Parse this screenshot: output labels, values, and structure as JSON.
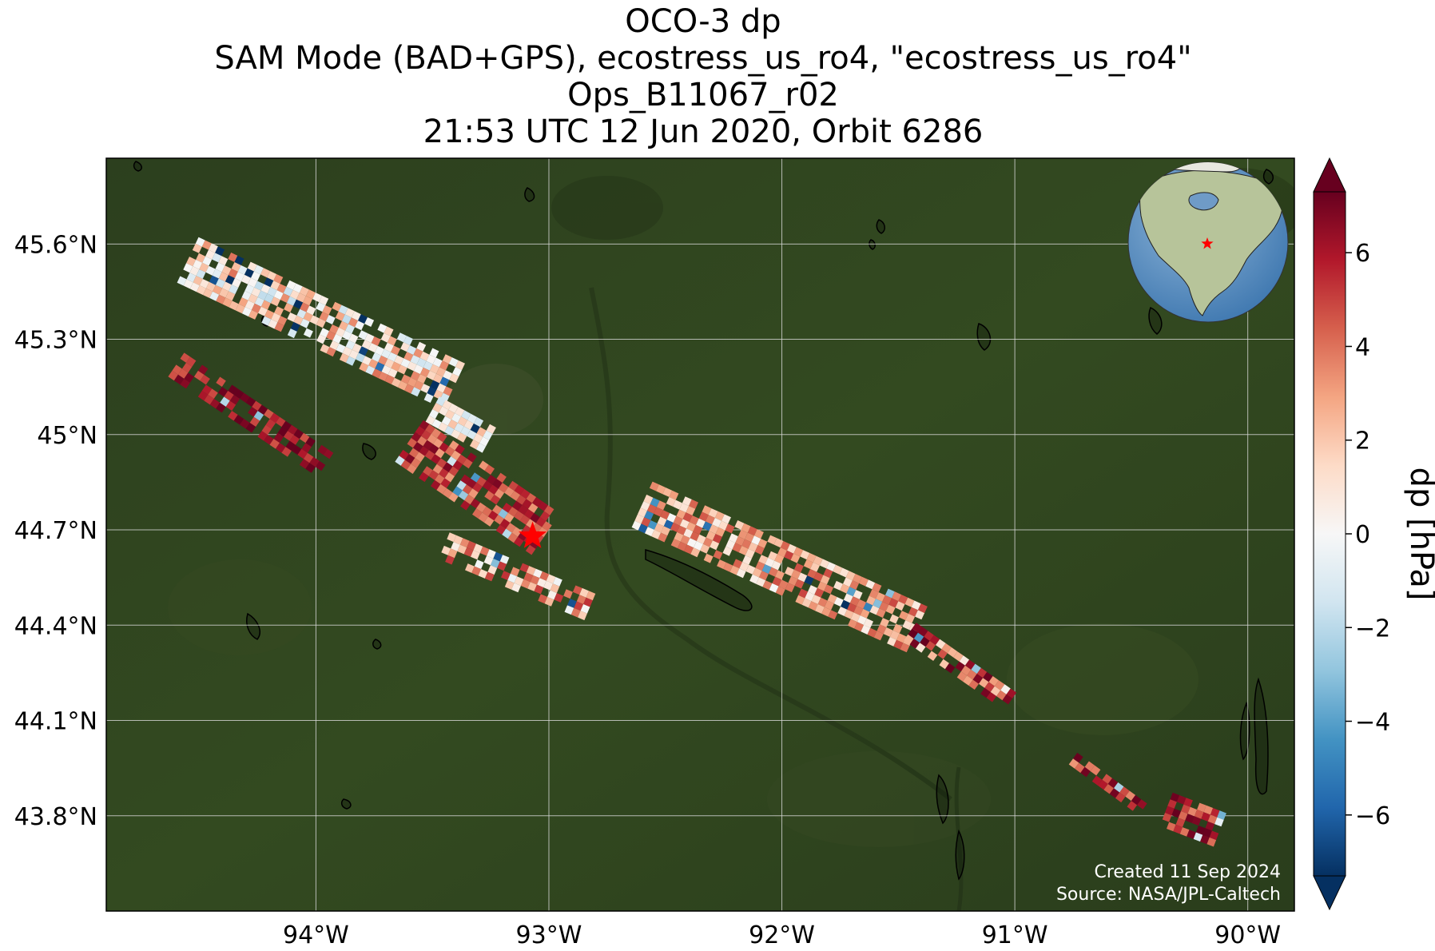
{
  "title": {
    "line1": "OCO-3 dp",
    "line2": "SAM Mode (BAD+GPS), ecostress_us_ro4, \"ecostress_us_ro4\"",
    "line3": "Ops_B11067_r02",
    "line4": "21:53 UTC 12 Jun 2020, Orbit 6286"
  },
  "credits": {
    "created": "Created 11 Sep 2024",
    "source": "Source: NASA/JPL-Caltech"
  },
  "colorbar": {
    "label": "dp [hPa]",
    "colormap": "RdBu_r",
    "range": [
      -7.3,
      7.3
    ],
    "extend": "both",
    "ticks": [
      -6,
      -4,
      -2,
      0,
      2,
      4,
      6
    ],
    "tick_labels": [
      "−6",
      "−4",
      "−2",
      "0",
      "2",
      "4",
      "6"
    ]
  },
  "axes": {
    "lon_range": [
      -94.9,
      -89.8
    ],
    "lat_range": [
      43.5,
      45.87
    ],
    "lon_ticks": [
      -94,
      -93,
      -92,
      -91,
      -90
    ],
    "lon_tick_labels": [
      "94°W",
      "93°W",
      "92°W",
      "91°W",
      "90°W"
    ],
    "lat_ticks": [
      45.6,
      45.3,
      45.0,
      44.7,
      44.4,
      44.1,
      43.8
    ],
    "lat_tick_labels": [
      "45.6°N",
      "45.3°N",
      "45°N",
      "44.7°N",
      "44.4°N",
      "44.1°N",
      "43.8°N"
    ],
    "grid": true
  },
  "map": {
    "basemap": "satellite imagery",
    "target_marker": {
      "lon": -93.07,
      "lat": 44.68,
      "symbol": "star",
      "color": "#ff0000"
    },
    "inset_globe": {
      "marker": "star",
      "center_lon": -93.0,
      "center_lat": 44.7
    }
  },
  "chart_data": {
    "type": "heatmap",
    "variable": "dp",
    "units": "hPa",
    "swaths": [
      {
        "name": "swath-1",
        "lon_start": -94.55,
        "lat_start": 45.55,
        "lon_end": -93.4,
        "lat_end": 45.15,
        "across_deg": 0.1,
        "mean_dp": 1.0,
        "spread": 3.0
      },
      {
        "name": "swath-2",
        "lon_start": -94.6,
        "lat_start": 45.22,
        "lon_end": -93.95,
        "lat_end": 44.9,
        "across_deg": 0.06,
        "mean_dp": 6.0,
        "spread": 1.5
      },
      {
        "name": "swath-3",
        "lon_start": -93.5,
        "lat_start": 45.08,
        "lon_end": -93.25,
        "lat_end": 44.98,
        "across_deg": 0.06,
        "mean_dp": 0.5,
        "spread": 2.0
      },
      {
        "name": "swath-4",
        "lon_start": -93.6,
        "lat_start": 44.98,
        "lon_end": -93.0,
        "lat_end": 44.68,
        "across_deg": 0.1,
        "mean_dp": 5.0,
        "spread": 2.0
      },
      {
        "name": "swath-5",
        "lon_start": -93.45,
        "lat_start": 44.65,
        "lon_end": -92.8,
        "lat_end": 44.45,
        "across_deg": 0.06,
        "mean_dp": 2.5,
        "spread": 3.0
      },
      {
        "name": "swath-6",
        "lon_start": -92.6,
        "lat_start": 44.78,
        "lon_end": -91.4,
        "lat_end": 44.38,
        "across_deg": 0.1,
        "mean_dp": 2.5,
        "spread": 2.5
      },
      {
        "name": "swath-7",
        "lon_start": -91.45,
        "lat_start": 44.38,
        "lon_end": -91.0,
        "lat_end": 44.15,
        "across_deg": 0.05,
        "mean_dp": 4.0,
        "spread": 4.0
      },
      {
        "name": "swath-8",
        "lon_start": -90.75,
        "lat_start": 43.98,
        "lon_end": -90.45,
        "lat_end": 43.82,
        "across_deg": 0.04,
        "mean_dp": 5.0,
        "spread": 2.5
      },
      {
        "name": "swath-9",
        "lon_start": -90.35,
        "lat_start": 43.82,
        "lon_end": -90.1,
        "lat_end": 43.75,
        "across_deg": 0.08,
        "mean_dp": 5.5,
        "spread": 2.0
      }
    ]
  }
}
